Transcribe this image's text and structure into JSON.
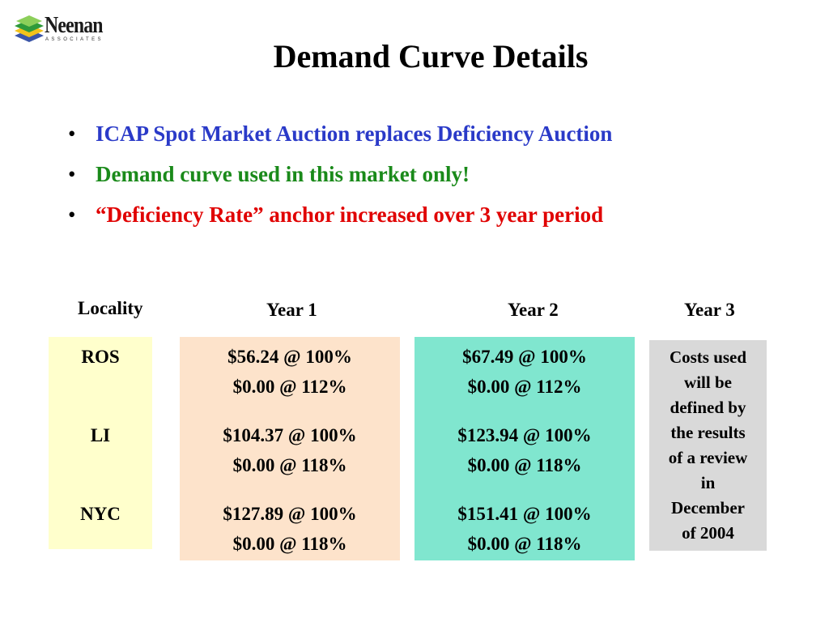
{
  "logo": {
    "name": "Neenan",
    "subtitle": "ASSOCIATES"
  },
  "slide": {
    "title": "Demand Curve Details"
  },
  "bullets": [
    "ICAP Spot Market Auction replaces Deficiency Auction",
    "Demand curve used in this market only!",
    "“Deficiency Rate” anchor increased over 3 year period"
  ],
  "bullet_colors": [
    "#2a3ac8",
    "#1a8a1a",
    "#e00000"
  ],
  "table": {
    "headers": {
      "locality": "Locality",
      "year1": "Year 1",
      "year2": "Year 2",
      "year3": "Year 3"
    },
    "rows": [
      {
        "locality": "ROS",
        "year1": [
          "$56.24 @ 100%",
          "$0.00 @ 112%"
        ],
        "year2": [
          "$67.49 @ 100%",
          "$0.00 @ 112%"
        ]
      },
      {
        "locality": "LI",
        "year1": [
          "$104.37 @ 100%",
          "$0.00 @ 118%"
        ],
        "year2": [
          "$123.94 @ 100%",
          "$0.00 @ 118%"
        ]
      },
      {
        "locality": "NYC",
        "year1": [
          "$127.89 @ 100%",
          "$0.00 @ 118%"
        ],
        "year2": [
          "$151.41 @ 100%",
          "$0.00 @ 118%"
        ]
      }
    ],
    "year3_note": "Costs used\nwill be\ndefined by\nthe results\nof a review\nin\nDecember\nof 2004",
    "box_colors": {
      "locality": "#ffffcc",
      "year1": "#fde3cb",
      "year2": "#80e6cf",
      "year3": "#d9d9d9"
    }
  }
}
